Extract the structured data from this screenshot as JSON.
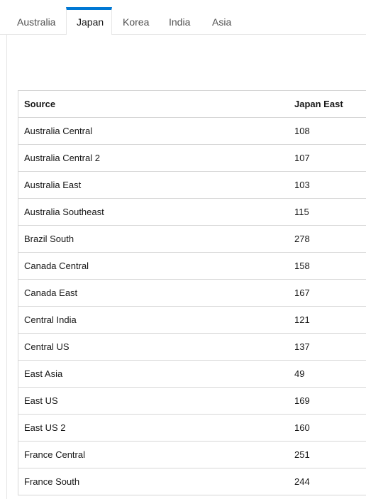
{
  "tabs": [
    {
      "label": "Australia",
      "active": false
    },
    {
      "label": "Japan",
      "active": true
    },
    {
      "label": "Korea",
      "active": false
    },
    {
      "label": "India",
      "active": false
    },
    {
      "label": "Asia",
      "active": false
    }
  ],
  "accent_color": "#0078d4",
  "table": {
    "headers": {
      "source": "Source",
      "target": "Japan East"
    },
    "rows": [
      {
        "source": "Australia Central",
        "value": "108"
      },
      {
        "source": "Australia Central 2",
        "value": "107"
      },
      {
        "source": "Australia East",
        "value": "103"
      },
      {
        "source": "Australia Southeast",
        "value": "115"
      },
      {
        "source": "Brazil South",
        "value": "278"
      },
      {
        "source": "Canada Central",
        "value": "158"
      },
      {
        "source": "Canada East",
        "value": "167"
      },
      {
        "source": "Central India",
        "value": "121"
      },
      {
        "source": "Central US",
        "value": "137"
      },
      {
        "source": "East Asia",
        "value": "49"
      },
      {
        "source": "East US",
        "value": "169"
      },
      {
        "source": "East US 2",
        "value": "160"
      },
      {
        "source": "France Central",
        "value": "251"
      },
      {
        "source": "France South",
        "value": "244"
      }
    ]
  }
}
